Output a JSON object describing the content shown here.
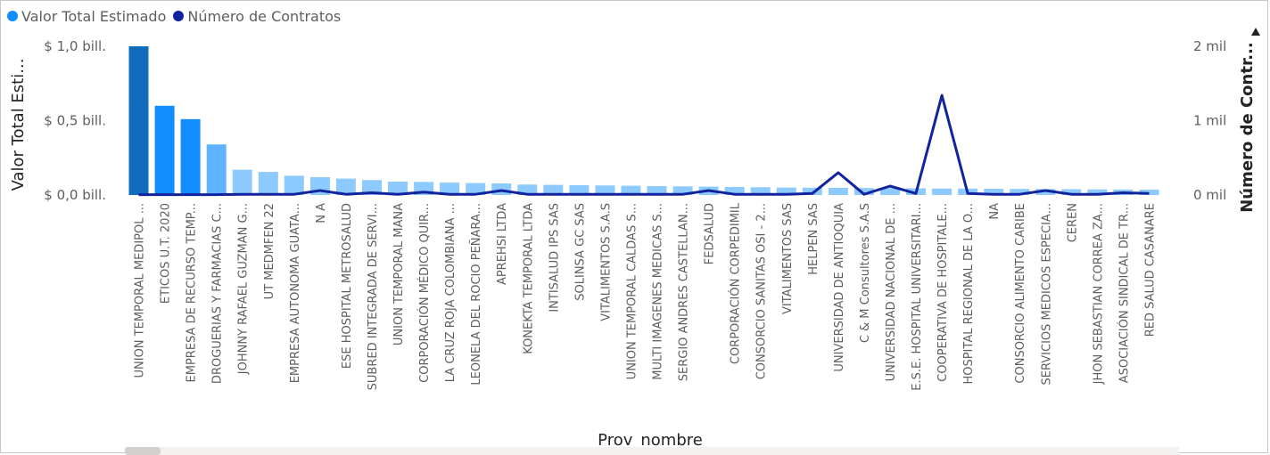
{
  "legend": {
    "items": [
      {
        "label": "Valor Total Estimado",
        "color": "#118dff"
      },
      {
        "label": "Número de Contratos",
        "color": "#12239e"
      }
    ]
  },
  "chart_data": {
    "type": "bar",
    "xlabel": "Prov_nombre",
    "ylabel": "Valor Total Esti...",
    "y2label": "Número de Contr...",
    "ylim": [
      0,
      1.0
    ],
    "y2lim": [
      0,
      2000
    ],
    "yticks": [
      "$ 0,0 bill.",
      "$ 0,5 bill.",
      "$ 1,0 bill."
    ],
    "y2ticks": [
      "0 mil",
      "1 mil",
      "2 mil"
    ],
    "categories": [
      "UNION TEMPORAL MEDIPOL ...",
      "ETICOS U.T. 2020",
      "EMPRESA DE RECURSO TEMP...",
      "DROGUERIAS Y FARMACIAS C...",
      "JOHNNY RAFAEL GUZMAN G...",
      "UT MEDMFEN 22",
      "EMPRESA AUTONOMA GUATA...",
      "N A",
      "ESE HOSPITAL METROSALUD",
      "SUBRED INTEGRADA DE SERVI...",
      "UNION TEMPORAL MANA",
      "CORPORACIÓN MÉDICO QUIR...",
      "LA CRUZ ROJA COLOMBIANA ...",
      "LEONELA DEL ROCIO PEÑARA...",
      "APREHSI LTDA",
      "KONEKTA TEMPORAL LTDA",
      "INTISALUD IPS SAS",
      "SOLINSA GC SAS",
      "VITALIMENTOS S.A.S",
      "UNION TEMPORAL CALDAS S...",
      "MULTI IMAGENES MEDICAS S...",
      "SERGIO ANDRES CASTELLAN...",
      "FEDSALUD",
      "CORPORACIÓN CORPEDIMIL",
      "CONSORCIO SANITAS OSI - 2...",
      "VITALIMENTOS SAS",
      "HELPEN SAS",
      "UNIVERSIDAD DE ANTIOQUIA",
      "C & M Consultores S.A.S",
      "UNIVERSIDAD NACIONAL DE ...",
      "E.S.E. HOSPITAL UNIVERSITARI...",
      "COOPERATIVA DE HOSPITALE...",
      "HOSPITAL REGIONAL DE LA O...",
      "NA",
      "CONSORCIO ALIMENTO CARIBE",
      "SERVICIOS MEDICOS ESPECIA...",
      "CEREN",
      "JHON SEBASTIAN CORREA ZA...",
      "ASOCIACIÓN SINDICAL DE TR...",
      "RED SALUD CASANARE"
    ],
    "series": [
      {
        "name": "Valor Total Estimado",
        "type": "bar",
        "values": [
          1.0,
          0.6,
          0.51,
          0.34,
          0.17,
          0.155,
          0.13,
          0.12,
          0.11,
          0.1,
          0.09,
          0.088,
          0.083,
          0.08,
          0.078,
          0.07,
          0.068,
          0.066,
          0.064,
          0.062,
          0.06,
          0.058,
          0.056,
          0.054,
          0.052,
          0.05,
          0.049,
          0.048,
          0.047,
          0.046,
          0.045,
          0.044,
          0.043,
          0.042,
          0.041,
          0.04,
          0.039,
          0.038,
          0.037,
          0.036
        ]
      },
      {
        "name": "Número de Contratos",
        "type": "line",
        "values": [
          5,
          5,
          5,
          5,
          10,
          10,
          10,
          60,
          10,
          30,
          10,
          40,
          10,
          10,
          60,
          10,
          10,
          10,
          10,
          10,
          10,
          10,
          60,
          10,
          10,
          10,
          20,
          300,
          10,
          120,
          20,
          1340,
          20,
          10,
          10,
          60,
          10,
          10,
          30,
          20
        ]
      }
    ],
    "highlight": {
      "index": 0,
      "color": "#0f6cbd"
    },
    "bar_colors": [
      "#118dff",
      "#118dff",
      "#118dff",
      "#5fb3ff",
      "#8ccaff"
    ]
  }
}
